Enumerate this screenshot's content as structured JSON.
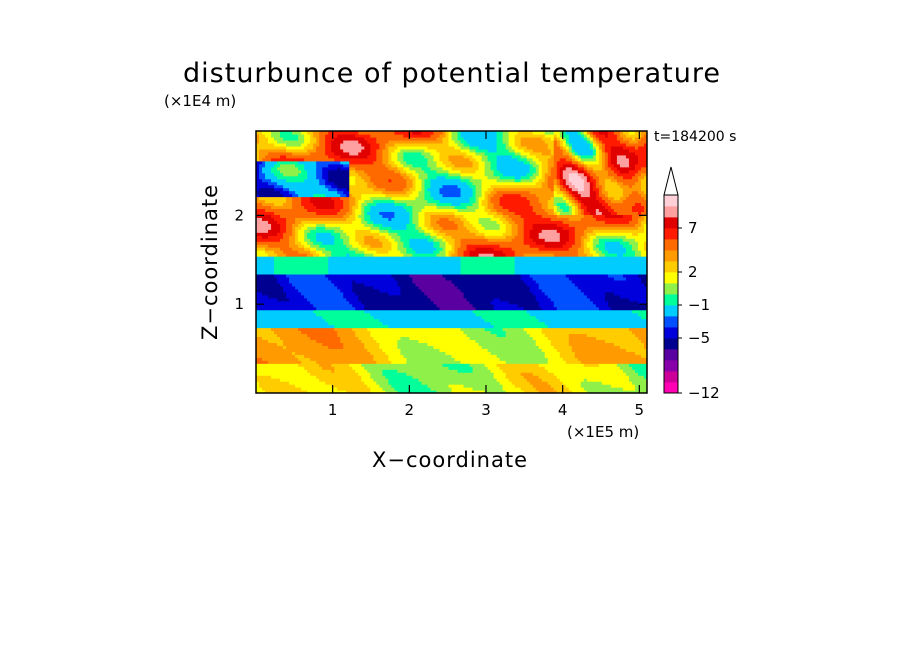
{
  "chart_data": {
    "type": "heatmap",
    "title": "disturbunce of potential temperature",
    "time_label": "t=184200 s",
    "xlabel": "X−coordinate",
    "ylabel": "Z−coordinate",
    "x_scale_label": "(×1E5 m)",
    "y_scale_label": "(×1E4 m)",
    "xlim": [
      0,
      5.1
    ],
    "ylim": [
      0,
      2.95
    ],
    "x_ticks": [
      "1",
      "2",
      "3",
      "4",
      "5"
    ],
    "y_ticks": [
      "1",
      "2"
    ],
    "colorbar": {
      "extend": "max",
      "labels": [
        "7",
        "2",
        "−1",
        "−5",
        "−12"
      ],
      "colors": [
        "#ff00b4",
        "#cc0099",
        "#8800aa",
        "#5a00a0",
        "#000090",
        "#0000dd",
        "#0050ff",
        "#00ccff",
        "#00ff9a",
        "#90f04a",
        "#ffff00",
        "#ffcc00",
        "#ff9a00",
        "#ff6a00",
        "#ff1a00",
        "#e00000",
        "#ffa0a0",
        "#ffd0d8"
      ]
    }
  }
}
